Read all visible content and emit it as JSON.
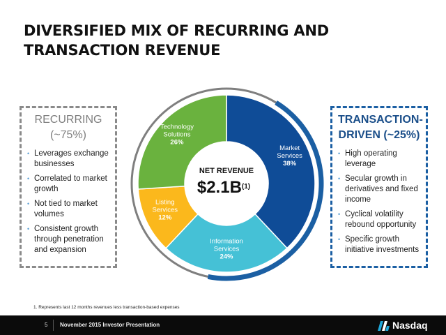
{
  "title_line1": "DIVERSIFIED MIX OF RECURRING AND",
  "title_line2": "TRANSACTION REVENUE",
  "recurring": {
    "title_line1": "RECURRING",
    "title_line2": "(~75%)",
    "bullets": [
      "Leverages exchange businesses",
      "Correlated to market growth",
      "Not tied to market volumes",
      "Consistent growth through penetration and expansion"
    ]
  },
  "transaction": {
    "title_line1": "TRANSACTION-",
    "title_line2": "DRIVEN (~25%)",
    "bullets": [
      "High operating leverage",
      "Secular growth in derivatives and fixed income",
      "Cyclical volatility rebound opportunity",
      "Specific growth initiative investments"
    ]
  },
  "chart_data": {
    "type": "pie",
    "center_title": "NET REVENUE",
    "center_value": "$2.1B",
    "center_sup": "(1)",
    "slices": [
      {
        "name_lines": [
          "Market",
          "Services"
        ],
        "pct_label": "38%",
        "value": 38,
        "color": "#0f4c97"
      },
      {
        "name_lines": [
          "Information",
          "Services"
        ],
        "pct_label": "24%",
        "value": 24,
        "color": "#45c1d6"
      },
      {
        "name_lines": [
          "Listing",
          "Services"
        ],
        "pct_label": "12%",
        "value": 12,
        "color": "#fbb81c"
      },
      {
        "name_lines": [
          "Technology",
          "Solutions"
        ],
        "pct_label": "26%",
        "value": 26,
        "color": "#6ab23e"
      }
    ],
    "outer_ring_color": "#7f7f7f",
    "outer_arc_color": "#1b5fa3"
  },
  "footnote": "1. Represents last 12 months revenues less transaction-based expenses",
  "footer": {
    "page_number": "5",
    "presentation": "November 2015 Investor Presentation",
    "logo_text": "Nasdaq"
  }
}
